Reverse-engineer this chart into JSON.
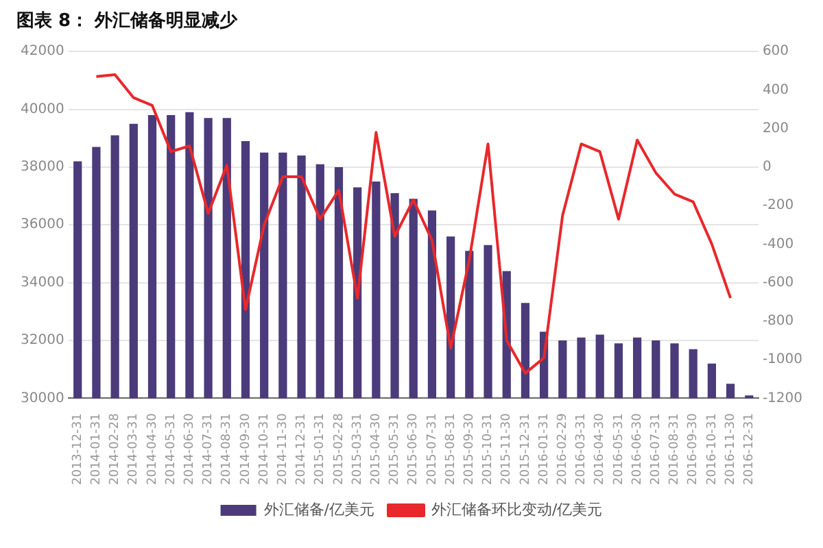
{
  "chart_data": {
    "type": "bar",
    "title": "图表 8： 外汇储备明显减少",
    "categories": [
      "2013-12-31",
      "2014-01-31",
      "2014-02-28",
      "2014-03-31",
      "2014-04-30",
      "2014-05-31",
      "2014-06-30",
      "2014-07-31",
      "2014-08-31",
      "2014-09-30",
      "2014-10-31",
      "2014-11-30",
      "2014-12-31",
      "2015-01-31",
      "2015-02-28",
      "2015-03-31",
      "2015-04-30",
      "2015-05-31",
      "2015-06-30",
      "2015-07-31",
      "2015-08-31",
      "2015-09-30",
      "2015-10-31",
      "2015-11-30",
      "2015-12-31",
      "2016-01-31",
      "2016-02-29",
      "2016-03-31",
      "2016-04-30",
      "2016-05-31",
      "2016-06-30",
      "2016-07-31",
      "2016-08-31",
      "2016-09-30",
      "2016-10-31",
      "2016-11-30",
      "2016-12-31"
    ],
    "series": [
      {
        "name": "外汇储备/亿美元",
        "color": "#4b3b7a",
        "values": [
          38200,
          38700,
          39100,
          39500,
          39800,
          39800,
          39900,
          39700,
          39700,
          38900,
          38500,
          38500,
          38400,
          38100,
          38000,
          37300,
          37500,
          37100,
          36900,
          36500,
          35600,
          35100,
          35300,
          34400,
          33300,
          32300,
          32000,
          32100,
          32200,
          31900,
          32100,
          32000,
          31900,
          31700,
          31200,
          30500,
          30100
        ]
      },
      {
        "name": "外汇储备环比变动/亿美元",
        "type": "line",
        "axis": "y2",
        "color": "#e8282b",
        "values": [
          null,
          470,
          480,
          360,
          320,
          80,
          110,
          -240,
          10,
          -740,
          -300,
          -50,
          -50,
          -270,
          -120,
          -680,
          180,
          -360,
          -170,
          -380,
          -940,
          -480,
          120,
          -900,
          -1070,
          -990,
          -250,
          120,
          80,
          -270,
          140,
          -30,
          -140,
          -180,
          -400,
          -680,
          null
        ]
      }
    ],
    "ylim": [
      30000,
      42000
    ],
    "yticks": [
      30000,
      32000,
      34000,
      36000,
      38000,
      40000,
      42000
    ],
    "y2lim": [
      -1200,
      600
    ],
    "y2ticks": [
      -1200,
      -1000,
      -800,
      -600,
      -400,
      -200,
      0,
      200,
      400,
      600
    ],
    "grid": "y",
    "legend": "bottom",
    "marker": "none",
    "line_style": "solid"
  }
}
